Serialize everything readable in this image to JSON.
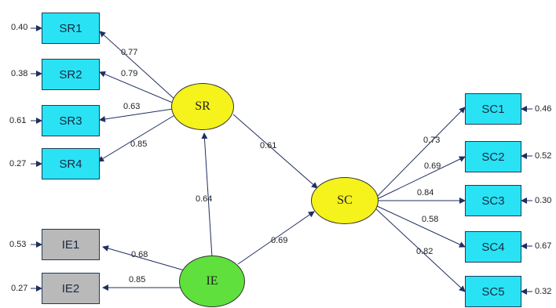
{
  "nodes": {
    "SR": "SR",
    "SC": "SC",
    "IE": "IE"
  },
  "indicators": {
    "SR1": "SR1",
    "SR2": "SR2",
    "SR3": "SR3",
    "SR4": "SR4",
    "IE1": "IE1",
    "IE2": "IE2",
    "SC1": "SC1",
    "SC2": "SC2",
    "SC3": "SC3",
    "SC4": "SC4",
    "SC5": "SC5"
  },
  "errors": {
    "SR1": "0.40",
    "SR2": "0.38",
    "SR3": "0.61",
    "SR4": "0.27",
    "IE1": "0.53",
    "IE2": "0.27",
    "SC1": "0.46",
    "SC2": "0.52",
    "SC3": "0.30",
    "SC4": "0.67",
    "SC5": "0.32"
  },
  "loadings": {
    "SR1": "0.77",
    "SR2": "0.79",
    "SR3": "0.63",
    "SR4": "0.85",
    "IE1": "0.68",
    "IE2": "0.85",
    "SC1": "0.73",
    "SC2": "0.69",
    "SC3": "0.84",
    "SC4": "0.58",
    "SC5": "0.82"
  },
  "paths": {
    "SR_SC": "0.61",
    "IE_SR": "0.64",
    "IE_SC": "0.69"
  },
  "colors": {
    "indicator": "#29e3f5",
    "indicator_gray": "#b9b9b9",
    "latent_yellow": "#f5f21c",
    "latent_green": "#5fe03c",
    "arrow": "#1f2f60"
  }
}
